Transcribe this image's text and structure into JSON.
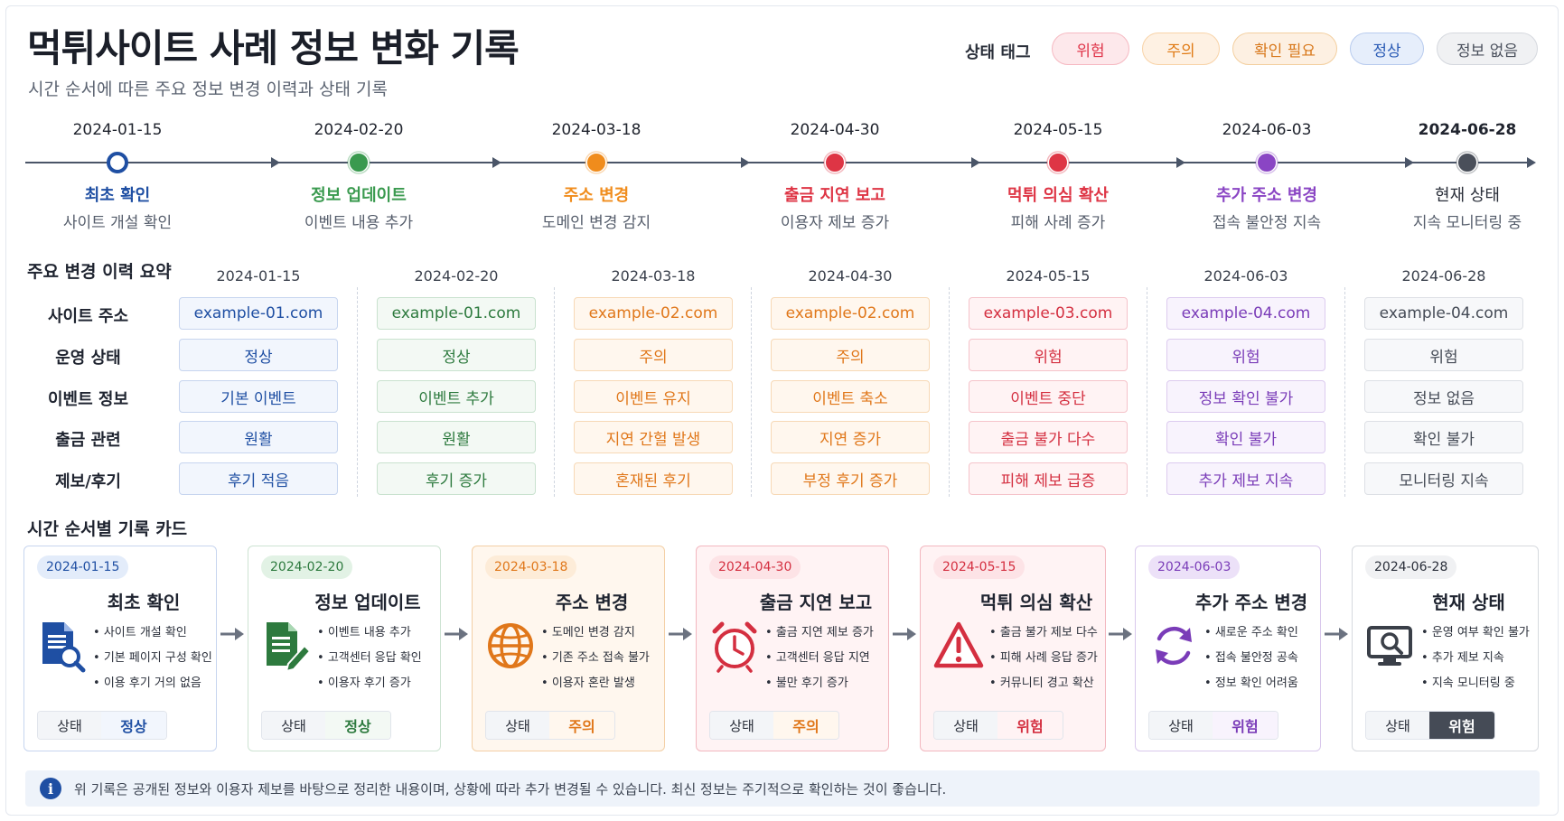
{
  "header": {
    "title": "먹튀사이트 사례 정보 변화 기록",
    "subtitle": "시간 순서에 따른 주요 정보 변경 이력과 상태 기록",
    "tag_label": "상태 태그",
    "tags": [
      {
        "label": "위험",
        "color": "#e0354a",
        "bg": "#fde8eb",
        "border": "#f6b9c2"
      },
      {
        "label": "주의",
        "color": "#e07a14",
        "bg": "#fef1e3",
        "border": "#f8d3a8"
      },
      {
        "label": "확인 필요",
        "color": "#d8781b",
        "bg": "#fdf0e2",
        "border": "#f3cf9f"
      },
      {
        "label": "정상",
        "color": "#2a5bb5",
        "bg": "#e6eefb",
        "border": "#b8cbee"
      },
      {
        "label": "정보 없음",
        "color": "#4a505c",
        "bg": "#f0f1f3",
        "border": "#d5d8de"
      }
    ]
  },
  "timeline": [
    {
      "date": "2024-01-15",
      "event": "최초 확인",
      "desc": "사이트 개설 확인",
      "color": "#1f4fa3",
      "hollow": true
    },
    {
      "date": "2024-02-20",
      "event": "정보 업데이트",
      "desc": "이벤트 내용 추가",
      "color": "#3a9a4f"
    },
    {
      "date": "2024-03-18",
      "event": "주소 변경",
      "desc": "도메인 변경 감지",
      "color": "#f08c1c"
    },
    {
      "date": "2024-04-30",
      "event": "출금 지연 보고",
      "desc": "이용자 제보 증가",
      "color": "#de3545"
    },
    {
      "date": "2024-05-15",
      "event": "먹튀 의심 확산",
      "desc": "피해 사례 증가",
      "color": "#de3545"
    },
    {
      "date": "2024-06-03",
      "event": "추가 주소 변경",
      "desc": "접속 불안정 지속",
      "color": "#8a45c4"
    },
    {
      "date": "2024-06-28",
      "event": "현재 상태",
      "desc": "지속 모니터링 중",
      "color": "#4a4f5a",
      "bold_date": true
    }
  ],
  "summary": {
    "title": "주요 변경 이력 요약",
    "rows": [
      "사이트 주소",
      "운영 상태",
      "이벤트 정보",
      "출금 관련",
      "제보/후기"
    ],
    "columns": [
      {
        "date": "2024-01-15",
        "theme": "blue",
        "values": [
          "example-01.com",
          "정상",
          "기본 이벤트",
          "원활",
          "후기 적음"
        ]
      },
      {
        "date": "2024-02-20",
        "theme": "green",
        "values": [
          "example-01.com",
          "정상",
          "이벤트 추가",
          "원활",
          "후기 증가"
        ]
      },
      {
        "date": "2024-03-18",
        "theme": "orange",
        "values": [
          "example-02.com",
          "주의",
          "이벤트 유지",
          "지연 간헐 발생",
          "혼재된 후기"
        ]
      },
      {
        "date": "2024-04-30",
        "theme": "orange",
        "values": [
          "example-02.com",
          "주의",
          "이벤트 축소",
          "지연 증가",
          "부정 후기 증가"
        ]
      },
      {
        "date": "2024-05-15",
        "theme": "red",
        "values": [
          "example-03.com",
          "위험",
          "이벤트 중단",
          "출금 불가 다수",
          "피해 제보 급증"
        ]
      },
      {
        "date": "2024-06-03",
        "theme": "purple",
        "values": [
          "example-04.com",
          "위험",
          "정보 확인 불가",
          "확인 불가",
          "추가 제보 지속"
        ]
      },
      {
        "date": "2024-06-28",
        "theme": "gray",
        "values": [
          "example-04.com",
          "위험",
          "정보 없음",
          "확인 불가",
          "모니터링 지속"
        ]
      }
    ]
  },
  "cards_section": {
    "title": "시간 순서별 기록 카드",
    "status_key": "상태",
    "cards": [
      {
        "date": "2024-01-15",
        "title": "최초 확인",
        "icon": "document-search-icon",
        "theme": "blue",
        "bullets": [
          "사이트 개설 확인",
          "기본 페이지 구성 확인",
          "이용 후기 거의 없음"
        ],
        "status": "정상",
        "status_theme": "blue"
      },
      {
        "date": "2024-02-20",
        "title": "정보 업데이트",
        "icon": "document-edit-icon",
        "theme": "green",
        "bullets": [
          "이벤트 내용 추가",
          "고객센터 응답 확인",
          "이용자 후기 증가"
        ],
        "status": "정상",
        "status_theme": "green"
      },
      {
        "date": "2024-03-18",
        "title": "주소 변경",
        "icon": "globe-icon",
        "theme": "orange",
        "bullets": [
          "도메인 변경 감지",
          "기존 주소 접속 불가",
          "이용자 혼란 발생"
        ],
        "status": "주의",
        "status_theme": "orange"
      },
      {
        "date": "2024-04-30",
        "title": "출금 지연 보고",
        "icon": "alarm-clock-icon",
        "theme": "red",
        "bullets": [
          "출금 지연 제보 증가",
          "고객센터 응답 지연",
          "불만 후기 증가"
        ],
        "status": "주의",
        "status_theme": "orange"
      },
      {
        "date": "2024-05-15",
        "title": "먹튀 의심 확산",
        "icon": "warning-icon",
        "theme": "red",
        "bullets": [
          "출금 불가 제보 다수",
          "피해 사례 응답 증가",
          "커뮤니티 경고 확산"
        ],
        "status": "위험",
        "status_theme": "red"
      },
      {
        "date": "2024-06-03",
        "title": "추가 주소 변경",
        "icon": "refresh-icon",
        "theme": "purple",
        "bullets": [
          "새로운 주소 확인",
          "접속 불안정 공속",
          "정보 확인 어려움"
        ],
        "status": "위험",
        "status_theme": "purple"
      },
      {
        "date": "2024-06-28",
        "title": "현재 상태",
        "icon": "monitor-search-icon",
        "theme": "gray",
        "bullets": [
          "운영 여부 확인 불가",
          "추가 제보 지속",
          "지속 모니터링 중"
        ],
        "status": "위험",
        "status_theme": "dark"
      }
    ]
  },
  "footer": {
    "icon_glyph": "i",
    "text": "위 기록은 공개된 정보와 이용자 제보를 바탕으로 정리한 내용이며, 상황에 따라 추가 변경될 수 있습니다. 최신 정보는 주기적으로 확인하는 것이 좋습니다."
  },
  "themes": {
    "blue": {
      "text": "#1f4fa3",
      "bg": "#f2f6fd",
      "border": "#c7d5ef",
      "date_bg": "#e3ecfa",
      "card_border": "#c7d5ef"
    },
    "green": {
      "text": "#2d7a3e",
      "bg": "#f3f9f4",
      "border": "#c9e2cf",
      "date_bg": "#e2f2e5",
      "card_border": "#cde3d2"
    },
    "orange": {
      "text": "#e0771a",
      "bg": "#fff7ee",
      "border": "#f7d9b6",
      "date_bg": "#fdecd8",
      "card_border": "#f3cfa5"
    },
    "red": {
      "text": "#d42f40",
      "bg": "#fff3f4",
      "border": "#f5c3ca",
      "date_bg": "#fde3e6",
      "card_border": "#f2b7bf"
    },
    "purple": {
      "text": "#7a3cb8",
      "bg": "#f8f3fd",
      "border": "#dccbef",
      "date_bg": "#ece1f8",
      "card_border": "#d9c8ec"
    },
    "gray": {
      "text": "#454b56",
      "bg": "#f7f8fa",
      "border": "#dde0e5",
      "date_bg": "#f0f1f3",
      "card_border": "#d6d9de"
    },
    "dark": {
      "text": "#ffffff",
      "bg": "#454b56",
      "border": "#454b56",
      "date_bg": "#454b56",
      "card_border": "#454b56"
    }
  }
}
